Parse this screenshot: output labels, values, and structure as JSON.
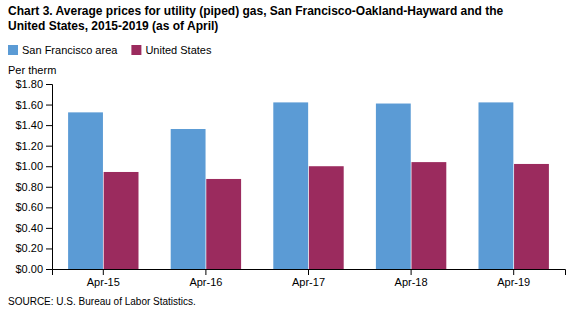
{
  "chart_data": {
    "type": "bar",
    "title": "Chart 3. Average prices for utility (piped) gas, San Francisco-Oakland-Hayward and the",
    "subtitle": "United States, 2015-2019  (as of April)",
    "y_label": "Per therm",
    "annotations": [
      "SOURCE: U.S. Bureau of Labor Statistics."
    ],
    "categories": [
      "Apr-15",
      "Apr-16",
      "Apr-17",
      "Apr-18",
      "Apr-19"
    ],
    "series": [
      {
        "name": "San Francisco area",
        "color": "#5B9BD5",
        "values": [
          1.524,
          1.362,
          1.621,
          1.61,
          1.621
        ]
      },
      {
        "name": "United States",
        "color": "#9B2B5E",
        "values": [
          0.944,
          0.876,
          1.0,
          1.04,
          1.022
        ]
      }
    ],
    "ylim": [
      0.0,
      1.8
    ],
    "yticks": [
      {
        "value": 0.0,
        "label": "$0.00"
      },
      {
        "value": 0.2,
        "label": "$0.20"
      },
      {
        "value": 0.4,
        "label": "$0.40"
      },
      {
        "value": 0.6,
        "label": "$0.60"
      },
      {
        "value": 0.8,
        "label": "$0.80"
      },
      {
        "value": 1.0,
        "label": "$1.00"
      },
      {
        "value": 1.2,
        "label": "$1.20"
      },
      {
        "value": 1.4,
        "label": "$1.40"
      },
      {
        "value": 1.6,
        "label": "$1.60"
      },
      {
        "value": 1.8,
        "label": "$1.80"
      }
    ],
    "legend": "upper left",
    "grid": false
  }
}
